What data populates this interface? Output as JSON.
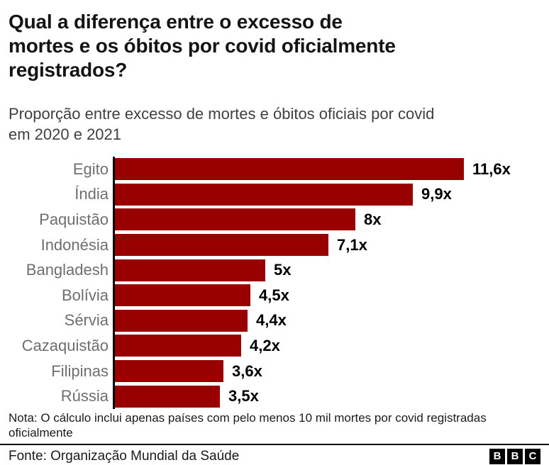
{
  "header": {
    "title": "Qual a diferença entre o excesso de mortes e os óbitos por covid oficialmente registrados?",
    "title_lines": [
      "Qual a diferença entre o excesso de",
      "mortes e os óbitos por covid oficialmente",
      "registrados?"
    ],
    "subtitle": "Proporção entre excesso de mortes e óbitos oficiais por covid em 2020 e 2021",
    "subtitle_lines": [
      "Proporção entre excesso de mortes e óbitos oficiais por covid",
      "em 2020 e 2021"
    ]
  },
  "chart_data": {
    "type": "bar",
    "orientation": "horizontal",
    "title": "Qual a diferença entre o excesso de mortes e os óbitos por covid oficialmente registrados?",
    "subtitle": "Proporção entre excesso de mortes e óbitos oficiais por covid em 2020 e 2021",
    "categories": [
      "Egito",
      "Índia",
      "Paquistão",
      "Indonésia",
      "Bangladesh",
      "Bolívia",
      "Sérvia",
      "Cazaquistão",
      "Filipinas",
      "Rússia"
    ],
    "values": [
      11.6,
      9.9,
      8,
      7.1,
      5,
      4.5,
      4.4,
      4.2,
      3.6,
      3.5
    ],
    "value_labels": [
      "11,6x",
      "9,9x",
      "8x",
      "7,1x",
      "5x",
      "4,5x",
      "4,4x",
      "4,2x",
      "3,6x",
      "3,5x"
    ],
    "xlabel": "",
    "ylabel": "",
    "xlim": [
      0,
      11.6
    ],
    "grid": false,
    "legend": false,
    "value_suffix": "x",
    "decimal_separator": ",",
    "bar_color": "#990000",
    "category_label_color": "#6e6e73",
    "value_label_color": "#000000",
    "axis_color": "#000000"
  },
  "footer": {
    "note": "Nota: O cálculo inclui apenas países com pelo menos 10 mil mortes por covid registradas oficialmente",
    "source": "Fonte: Organização Mundial da Saúde",
    "logo_letters": [
      "B",
      "B",
      "C"
    ]
  }
}
